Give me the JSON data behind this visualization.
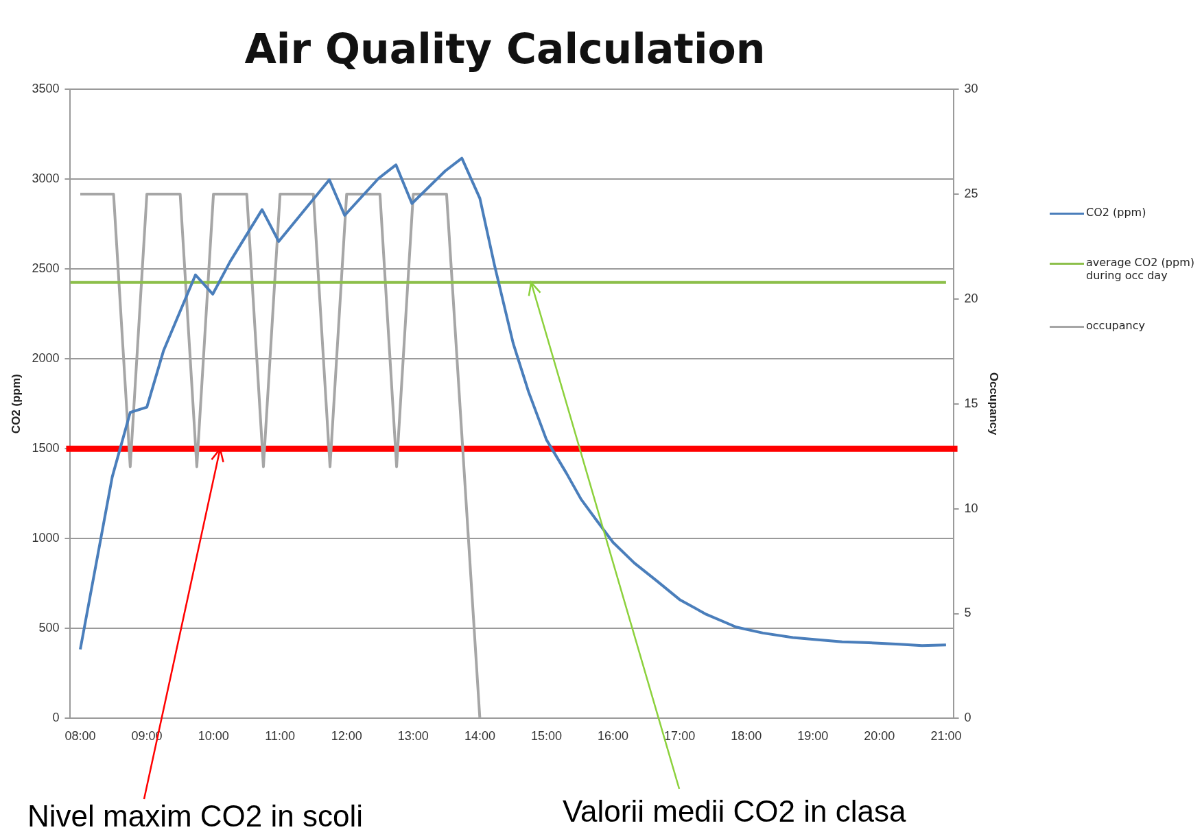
{
  "chart_data": {
    "type": "line",
    "title": "Air Quality Calculation",
    "ylabel": "CO2 (ppm)",
    "y2label": "Occupancy",
    "xlim": [
      7.85,
      21.11
    ],
    "xticks": [
      {
        "value": 8,
        "label": "08:00"
      },
      {
        "value": 9,
        "label": "09:00"
      },
      {
        "value": 10,
        "label": "10:00"
      },
      {
        "value": 11,
        "label": "11:00"
      },
      {
        "value": 12,
        "label": "12:00"
      },
      {
        "value": 13,
        "label": "13:00"
      },
      {
        "value": 14,
        "label": "14:00"
      },
      {
        "value": 15,
        "label": "15:00"
      },
      {
        "value": 16,
        "label": "16:00"
      },
      {
        "value": 17,
        "label": "17:00"
      },
      {
        "value": 18,
        "label": "18:00"
      },
      {
        "value": 19,
        "label": "19:00"
      },
      {
        "value": 20,
        "label": "20:00"
      },
      {
        "value": 21,
        "label": "21:00"
      }
    ],
    "ylim": [
      0,
      3500
    ],
    "yticks": [
      0,
      500,
      1000,
      1500,
      2000,
      2500,
      3000,
      3500
    ],
    "y2lim": [
      0,
      30
    ],
    "y2ticks": [
      0,
      5,
      10,
      15,
      20,
      25,
      30
    ],
    "grid": "y",
    "legend": "right",
    "marker": "none",
    "line_style": "solid",
    "series": [
      {
        "name": "CO2 (ppm)",
        "color": "#4a7ebb",
        "x": [
          8.0,
          8.48,
          8.75,
          9.0,
          9.25,
          9.73,
          9.99,
          10.25,
          10.73,
          10.98,
          11.74,
          11.97,
          12.48,
          12.74,
          12.98,
          13.48,
          13.73,
          14.0,
          14.22,
          14.5,
          14.73,
          15.0,
          15.3,
          15.52,
          15.75,
          16.0,
          16.32,
          16.66,
          17.0,
          17.4,
          17.85,
          18.25,
          18.7,
          19.05,
          19.44,
          19.84,
          20.3,
          20.64,
          21.0
        ],
        "values": [
          384,
          1343,
          1702,
          1731,
          2045,
          2467,
          2360,
          2541,
          2830,
          2653,
          2996,
          2798,
          3004,
          3079,
          2864,
          3045,
          3116,
          2893,
          2521,
          2087,
          1818,
          1550,
          1364,
          1219,
          1103,
          979,
          864,
          764,
          661,
          579,
          508,
          475,
          450,
          438,
          426,
          421,
          413,
          405,
          409
        ]
      },
      {
        "name": "average CO2 (ppm) during occ day",
        "color": "#8cbf4a",
        "x": [
          7.85,
          21.0
        ],
        "values": [
          2425,
          2425
        ]
      },
      {
        "name": "occupancy",
        "color": "#a6a6a6",
        "axis": "y2",
        "x": [
          8.0,
          8.5,
          8.75,
          9.0,
          9.5,
          9.75,
          10.0,
          10.5,
          10.75,
          11.0,
          11.5,
          11.75,
          12.0,
          12.5,
          12.75,
          13.0,
          13.5,
          14.0
        ],
        "values": [
          25,
          25,
          12,
          25,
          25,
          12,
          25,
          25,
          12,
          25,
          25,
          12,
          25,
          25,
          12,
          25,
          25,
          0
        ]
      }
    ],
    "ref_lines": [
      {
        "axis": "y",
        "value": 1500,
        "color": "#ff0000"
      }
    ],
    "annotations": [
      {
        "text": "Nivel maxim CO2 in scoli",
        "x": 10.1,
        "y": 1500
      },
      {
        "text": "Valorii medii CO2 in clasa",
        "x": 14.77,
        "y": 2425
      }
    ]
  }
}
